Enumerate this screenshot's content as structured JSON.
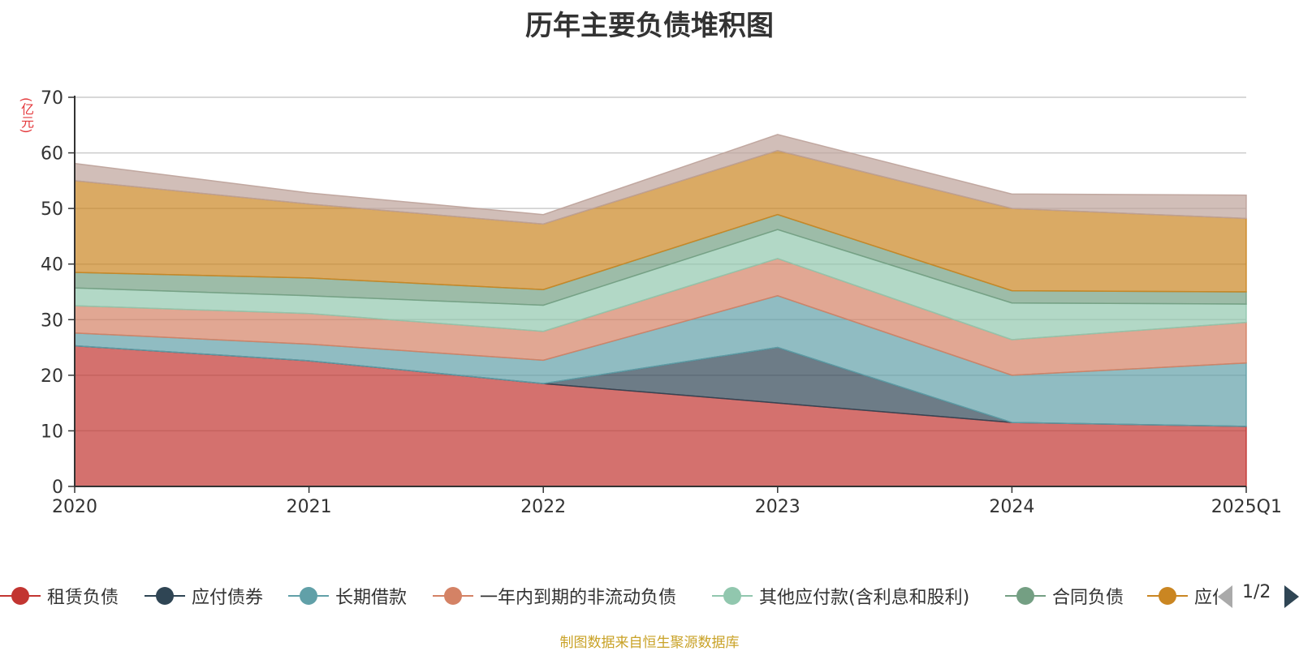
{
  "chart_data": {
    "type": "area",
    "title": "历年主要负债堆积图",
    "y_unit": "(亿元)",
    "categories": [
      "2020",
      "2021",
      "2022",
      "2023",
      "2024",
      "2025Q1"
    ],
    "ylim": [
      0,
      70
    ],
    "yticks": [
      0,
      10,
      20,
      30,
      40,
      50,
      60,
      70
    ],
    "grid": true,
    "stacked": true,
    "series": [
      {
        "name": "租赁负债",
        "color": "#c23531",
        "values": [
          25.3,
          22.6,
          18.5,
          15.0,
          11.5,
          10.8
        ]
      },
      {
        "name": "应付债券",
        "color": "#2f4554",
        "values": [
          0,
          0,
          0,
          10.0,
          0,
          0
        ]
      },
      {
        "name": "长期借款",
        "color": "#61a0a8",
        "values": [
          2.3,
          3.0,
          4.2,
          9.3,
          8.5,
          11.4
        ]
      },
      {
        "name": "一年内到期的非流动负债",
        "color": "#d48265",
        "values": [
          4.9,
          5.5,
          5.2,
          6.7,
          6.4,
          7.3
        ]
      },
      {
        "name": "其他应付款(含利息和股利)",
        "color": "#91c7ae",
        "values": [
          3.2,
          3.2,
          4.7,
          5.2,
          6.6,
          3.3
        ]
      },
      {
        "name": "合同负债",
        "color": "#749f83",
        "values": [
          2.8,
          3.2,
          2.8,
          2.7,
          2.2,
          2.2
        ]
      },
      {
        "name": "应付账款",
        "color": "#ca8622",
        "values": [
          16.5,
          13.3,
          11.8,
          11.5,
          14.8,
          13.2
        ]
      },
      {
        "name": "",
        "color": "#bda29a",
        "values": [
          3.1,
          2.0,
          1.7,
          2.9,
          2.6,
          4.2
        ]
      }
    ],
    "legend": {
      "position": "bottom",
      "page": "1/2"
    }
  },
  "source_note": "制图数据来自恒生聚源数据库"
}
